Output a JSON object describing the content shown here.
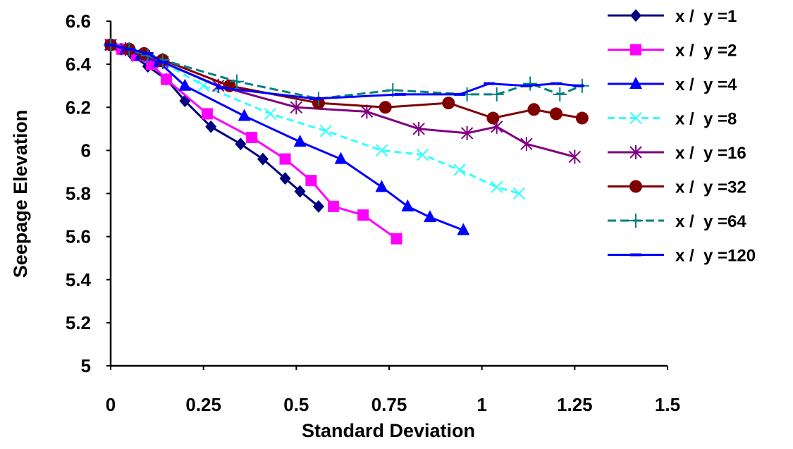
{
  "chart_data": {
    "type": "line",
    "title": "",
    "xlabel": "Standard Deviation",
    "ylabel": "Seepage Elevation",
    "xlim": [
      0,
      1.5
    ],
    "ylim": [
      5,
      6.6
    ],
    "x_ticks": [
      "0",
      "0.25",
      "0.5",
      "0.75",
      "1",
      "1.25",
      "1.5"
    ],
    "y_ticks": [
      "5",
      "5.2",
      "5.4",
      "5.6",
      "5.8",
      "6",
      "6.2",
      "6.4",
      "6.6"
    ],
    "grid": false,
    "legend_position": "right",
    "series": [
      {
        "name": "x /  y =1",
        "color": "#000080",
        "marker": "diamond",
        "points": [
          [
            0.0,
            6.49
          ],
          [
            0.03,
            6.47
          ],
          [
            0.06,
            6.44
          ],
          [
            0.1,
            6.39
          ],
          [
            0.15,
            6.33
          ],
          [
            0.2,
            6.23
          ],
          [
            0.27,
            6.11
          ],
          [
            0.35,
            6.03
          ],
          [
            0.41,
            5.96
          ],
          [
            0.47,
            5.87
          ],
          [
            0.51,
            5.81
          ],
          [
            0.56,
            5.74
          ]
        ]
      },
      {
        "name": "x /  y =2",
        "color": "#ff00ff",
        "marker": "square",
        "points": [
          [
            0.0,
            6.49
          ],
          [
            0.03,
            6.47
          ],
          [
            0.07,
            6.44
          ],
          [
            0.11,
            6.4
          ],
          [
            0.15,
            6.33
          ],
          [
            0.26,
            6.17
          ],
          [
            0.38,
            6.06
          ],
          [
            0.47,
            5.96
          ],
          [
            0.54,
            5.86
          ],
          [
            0.6,
            5.74
          ],
          [
            0.68,
            5.7
          ],
          [
            0.77,
            5.59
          ]
        ]
      },
      {
        "name": "x /  y =4",
        "color": "#0000ff",
        "marker": "triangle",
        "points": [
          [
            0.0,
            6.49
          ],
          [
            0.04,
            6.47
          ],
          [
            0.08,
            6.44
          ],
          [
            0.13,
            6.41
          ],
          [
            0.2,
            6.3
          ],
          [
            0.36,
            6.16
          ],
          [
            0.51,
            6.04
          ],
          [
            0.62,
            5.96
          ],
          [
            0.73,
            5.83
          ],
          [
            0.8,
            5.74
          ],
          [
            0.86,
            5.69
          ],
          [
            0.95,
            5.63
          ]
        ]
      },
      {
        "name": "x /  y =8",
        "color": "#33ffff",
        "marker": "x",
        "points": [
          [
            0.0,
            6.49
          ],
          [
            0.04,
            6.47
          ],
          [
            0.09,
            6.44
          ],
          [
            0.14,
            6.41
          ],
          [
            0.25,
            6.3
          ],
          [
            0.43,
            6.17
          ],
          [
            0.58,
            6.09
          ],
          [
            0.73,
            6.0
          ],
          [
            0.84,
            5.98
          ],
          [
            0.94,
            5.91
          ],
          [
            1.04,
            5.83
          ],
          [
            1.1,
            5.8
          ]
        ]
      },
      {
        "name": "x /  y =16",
        "color": "#800080",
        "marker": "star",
        "points": [
          [
            0.0,
            6.49
          ],
          [
            0.04,
            6.47
          ],
          [
            0.09,
            6.44
          ],
          [
            0.14,
            6.41
          ],
          [
            0.29,
            6.3
          ],
          [
            0.5,
            6.2
          ],
          [
            0.69,
            6.18
          ],
          [
            0.83,
            6.1
          ],
          [
            0.96,
            6.08
          ],
          [
            1.04,
            6.11
          ],
          [
            1.12,
            6.03
          ],
          [
            1.25,
            5.97
          ]
        ]
      },
      {
        "name": "x /  y =32",
        "color": "#800000",
        "marker": "circle",
        "points": [
          [
            0.0,
            6.49
          ],
          [
            0.05,
            6.47
          ],
          [
            0.09,
            6.45
          ],
          [
            0.14,
            6.42
          ],
          [
            0.32,
            6.3
          ],
          [
            0.56,
            6.22
          ],
          [
            0.74,
            6.2
          ],
          [
            0.91,
            6.22
          ],
          [
            1.03,
            6.15
          ],
          [
            1.14,
            6.19
          ],
          [
            1.2,
            6.17
          ],
          [
            1.27,
            6.15
          ]
        ]
      },
      {
        "name": "x /  y =64",
        "color": "#008080",
        "marker": "plus",
        "points": [
          [
            0.0,
            6.49
          ],
          [
            0.05,
            6.47
          ],
          [
            0.1,
            6.44
          ],
          [
            0.14,
            6.42
          ],
          [
            0.34,
            6.32
          ],
          [
            0.56,
            6.24
          ],
          [
            0.76,
            6.28
          ],
          [
            0.96,
            6.26
          ],
          [
            1.04,
            6.26
          ],
          [
            1.13,
            6.31
          ],
          [
            1.21,
            6.26
          ],
          [
            1.27,
            6.3
          ]
        ]
      },
      {
        "name": "x /  y =120",
        "color": "#0000ff",
        "marker": "dash",
        "points": [
          [
            0.0,
            6.49
          ],
          [
            0.05,
            6.47
          ],
          [
            0.1,
            6.45
          ],
          [
            0.14,
            6.41
          ],
          [
            0.3,
            6.29
          ],
          [
            0.55,
            6.24
          ],
          [
            0.78,
            6.26
          ],
          [
            0.94,
            6.26
          ],
          [
            1.02,
            6.31
          ],
          [
            1.12,
            6.3
          ],
          [
            1.2,
            6.31
          ],
          [
            1.26,
            6.3
          ]
        ]
      }
    ]
  }
}
